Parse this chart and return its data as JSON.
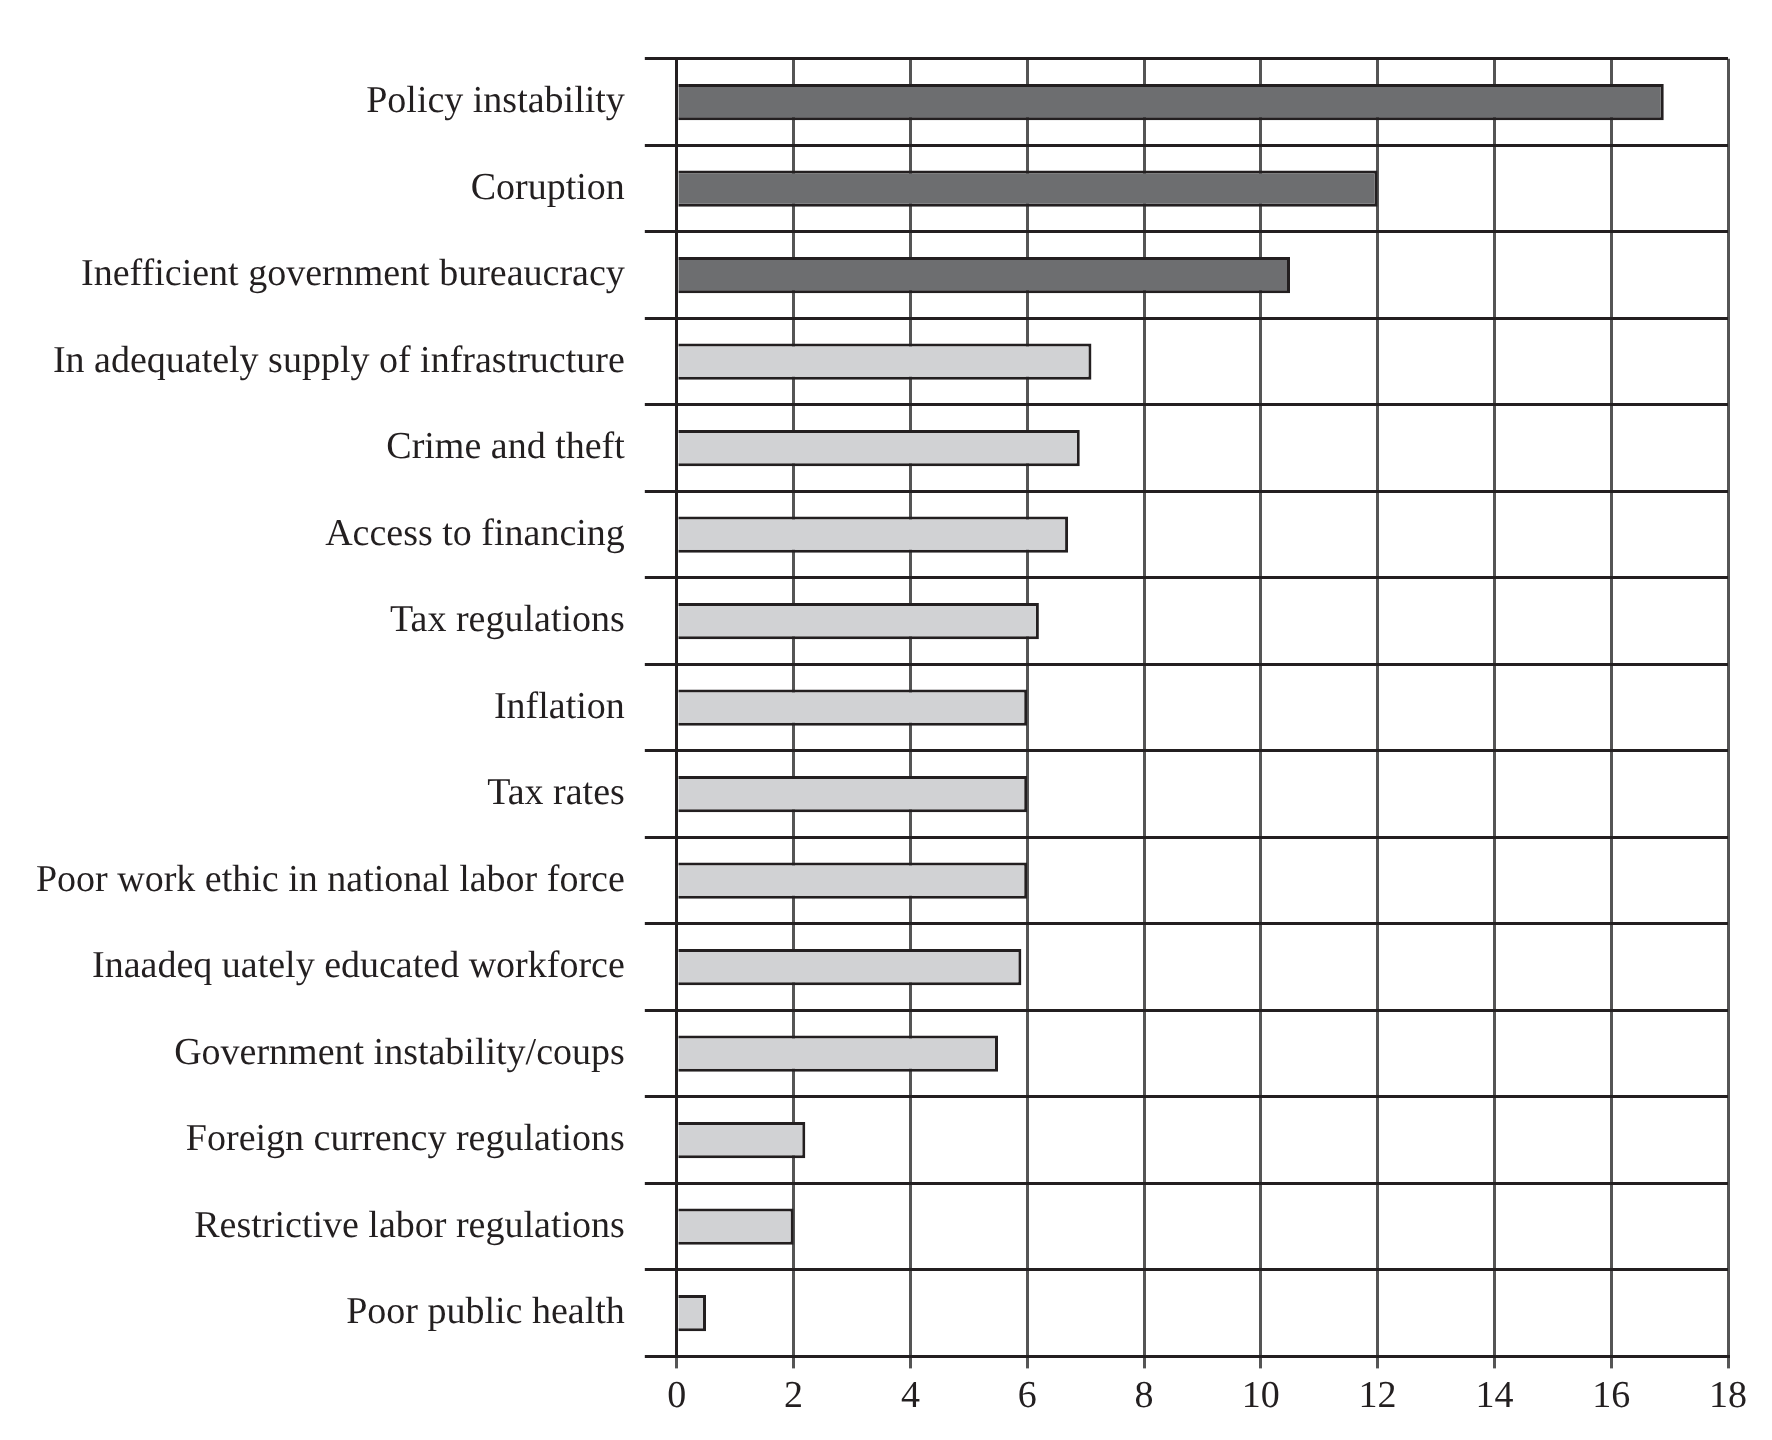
{
  "chart_data": {
    "type": "bar",
    "orientation": "horizontal",
    "categories": [
      "Policy instability",
      "Coruption",
      "Inefficient government bureaucracy",
      "In adequately supply of infrastructure",
      "Crime and theft",
      "Access to financing",
      "Tax regulations",
      "Inflation",
      "Tax rates",
      "Poor work ethic in national labor force",
      "Inaadeq uately educated workforce",
      "Government instability/coups",
      "Foreign currency regulations",
      "Restrictive labor regulations",
      "Poor public health"
    ],
    "values": [
      16.9,
      12.0,
      10.5,
      7.1,
      6.9,
      6.7,
      6.2,
      6.0,
      6.0,
      6.0,
      5.9,
      5.5,
      2.2,
      2.0,
      0.5
    ],
    "colors": [
      "#6d6e70",
      "#6d6e70",
      "#6d6e70",
      "#d1d2d4",
      "#d1d2d4",
      "#d1d2d4",
      "#d1d2d4",
      "#d1d2d4",
      "#d1d2d4",
      "#d1d2d4",
      "#d1d2d4",
      "#d1d2d4",
      "#d1d2d4",
      "#d1d2d4",
      "#d1d2d4"
    ],
    "xlim": [
      0,
      18
    ],
    "xticks": [
      0,
      2,
      4,
      6,
      8,
      10,
      12,
      14,
      16,
      18
    ],
    "grid": true
  }
}
